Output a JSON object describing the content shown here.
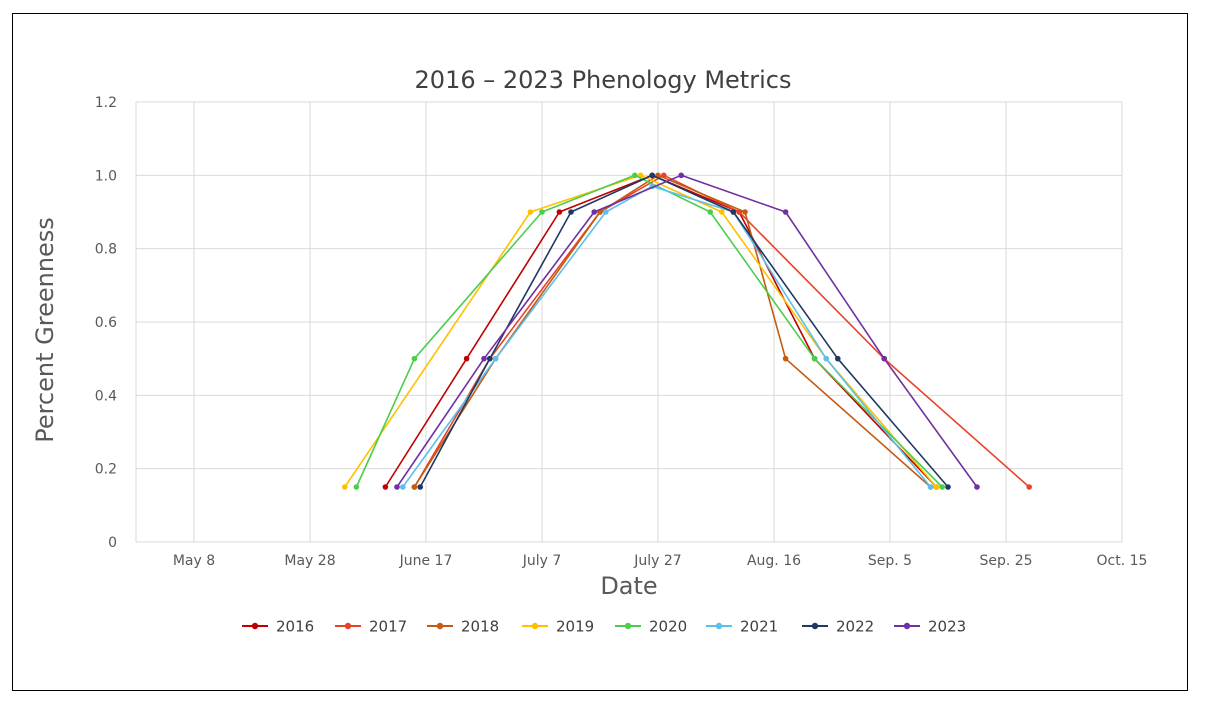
{
  "chart_data": {
    "type": "line",
    "title": "2016 – 2023 Phenology Metrics",
    "xlabel": "Date",
    "ylabel": "Percent Greenness",
    "x_axis": {
      "min": "2023-04-28",
      "max": "2023-10-15",
      "ticks": [
        "2023-05-08",
        "2023-05-28",
        "2023-06-17",
        "2023-07-07",
        "2023-07-27",
        "2023-08-16",
        "2023-09-05",
        "2023-09-25",
        "2023-10-15"
      ],
      "tick_labels": [
        "May 8",
        "May 28",
        "June 17",
        "July 7",
        "July 27",
        "Aug. 16",
        "Sep. 5",
        "Sep. 25",
        "Oct. 15"
      ]
    },
    "y_axis": {
      "min": 0,
      "max": 1.2,
      "ticks": [
        0,
        0.2,
        0.4,
        0.6,
        0.8,
        1.0,
        1.2
      ],
      "tick_labels": [
        "0",
        "0.2",
        "0.4",
        "0.6",
        "0.8",
        "1.0",
        "1.2"
      ]
    },
    "grid": true,
    "legend_position": "bottom",
    "series": [
      {
        "name": "2016",
        "color": "#c00000",
        "points": [
          [
            "2023-06-10",
            0.15
          ],
          [
            "2023-06-24",
            0.5
          ],
          [
            "2023-07-10",
            0.9
          ],
          [
            "2023-07-26",
            1.0
          ],
          [
            "2023-08-10",
            0.9
          ],
          [
            "2023-08-23",
            0.5
          ],
          [
            "2023-09-13",
            0.15
          ]
        ]
      },
      {
        "name": "2017",
        "color": "#e8432a",
        "points": [
          [
            "2023-06-15",
            0.15
          ],
          [
            "2023-06-28",
            0.5
          ],
          [
            "2023-07-17",
            0.9
          ],
          [
            "2023-07-28",
            1.0
          ],
          [
            "2023-08-10",
            0.9
          ],
          [
            "2023-09-04",
            0.5
          ],
          [
            "2023-09-29",
            0.15
          ]
        ]
      },
      {
        "name": "2018",
        "color": "#c55a11",
        "points": [
          [
            "2023-06-15",
            0.15
          ],
          [
            "2023-06-29",
            0.5
          ],
          [
            "2023-07-17",
            0.9
          ],
          [
            "2023-07-27",
            1.0
          ],
          [
            "2023-08-11",
            0.9
          ],
          [
            "2023-08-18",
            0.5
          ],
          [
            "2023-09-12",
            0.15
          ]
        ]
      },
      {
        "name": "2019",
        "color": "#ffc000",
        "points": [
          [
            "2023-06-03",
            0.15
          ],
          [
            "2023-07-05",
            0.9
          ],
          [
            "2023-07-24",
            1.0
          ],
          [
            "2023-08-07",
            0.9
          ],
          [
            "2023-08-25",
            0.5
          ],
          [
            "2023-09-13",
            0.15
          ]
        ]
      },
      {
        "name": "2020",
        "color": "#4ccd4c",
        "points": [
          [
            "2023-06-05",
            0.15
          ],
          [
            "2023-06-15",
            0.5
          ],
          [
            "2023-07-07",
            0.9
          ],
          [
            "2023-07-23",
            1.0
          ],
          [
            "2023-08-05",
            0.9
          ],
          [
            "2023-08-23",
            0.5
          ],
          [
            "2023-09-14",
            0.15
          ]
        ]
      },
      {
        "name": "2021",
        "color": "#5bc0eb",
        "points": [
          [
            "2023-06-13",
            0.15
          ],
          [
            "2023-06-29",
            0.5
          ],
          [
            "2023-07-18",
            0.9
          ],
          [
            "2023-07-26",
            0.97
          ],
          [
            "2023-08-09",
            0.9
          ],
          [
            "2023-08-25",
            0.5
          ],
          [
            "2023-09-12",
            0.15
          ]
        ]
      },
      {
        "name": "2022",
        "color": "#1f3864",
        "points": [
          [
            "2023-06-16",
            0.15
          ],
          [
            "2023-06-28",
            0.5
          ],
          [
            "2023-07-12",
            0.9
          ],
          [
            "2023-07-26",
            1.0
          ],
          [
            "2023-08-09",
            0.9
          ],
          [
            "2023-08-27",
            0.5
          ],
          [
            "2023-09-15",
            0.15
          ]
        ]
      },
      {
        "name": "2023",
        "color": "#7030a0",
        "points": [
          [
            "2023-06-12",
            0.15
          ],
          [
            "2023-06-27",
            0.5
          ],
          [
            "2023-07-16",
            0.9
          ],
          [
            "2023-07-31",
            1.0
          ],
          [
            "2023-08-18",
            0.9
          ],
          [
            "2023-09-04",
            0.5
          ],
          [
            "2023-09-20",
            0.15
          ]
        ]
      }
    ]
  }
}
